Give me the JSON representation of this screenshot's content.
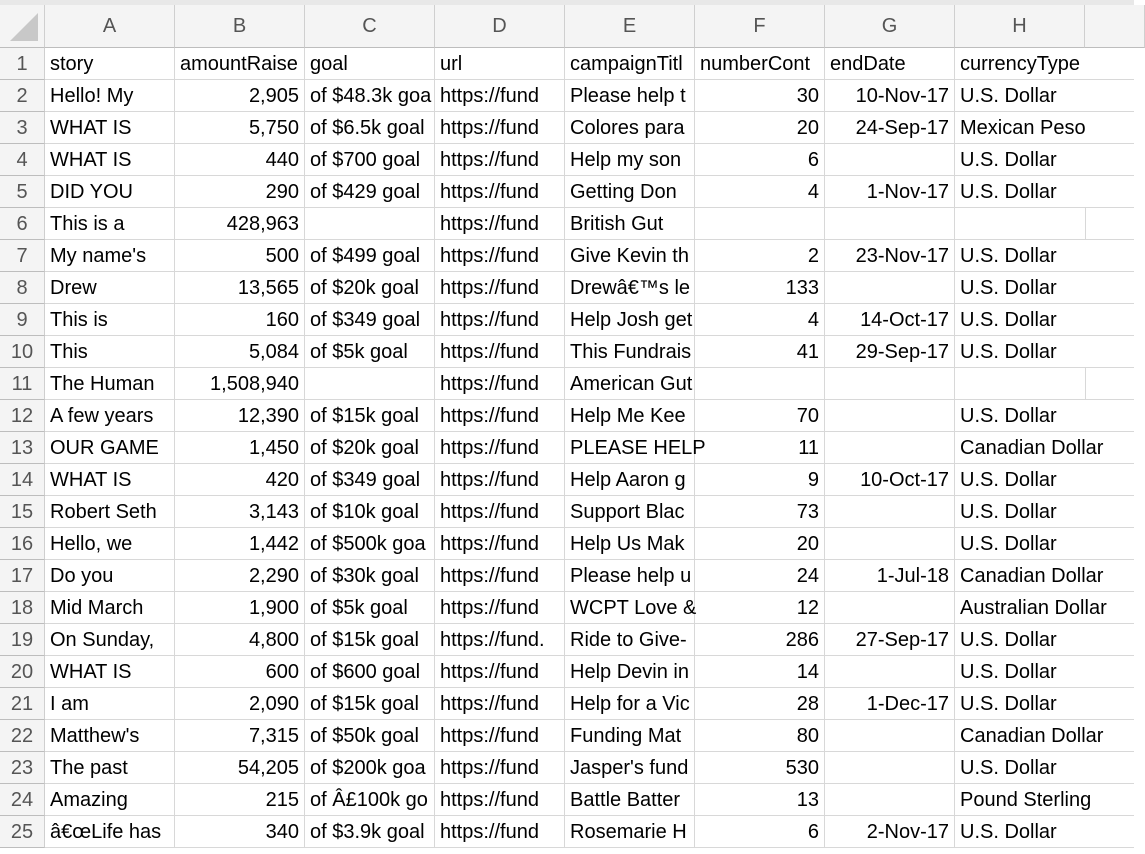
{
  "sheet": {
    "columns": [
      "A",
      "B",
      "C",
      "D",
      "E",
      "F",
      "G",
      "H"
    ],
    "rows": [
      {
        "number": 1,
        "cells": [
          "story",
          "amountRaise",
          "goal",
          "url",
          "campaignTitl",
          "numberCont",
          "endDate",
          "currencyType"
        ]
      },
      {
        "number": 2,
        "cells": [
          "Hello! My",
          "2,905",
          "of $48.3k goa",
          "https://fund",
          "Please help t",
          "30",
          "10-Nov-17",
          "U.S. Dollar"
        ]
      },
      {
        "number": 3,
        "cells": [
          "WHAT IS",
          "5,750",
          "of $6.5k goal",
          "https://fund",
          "Colores para",
          "20",
          "24-Sep-17",
          "Mexican Peso"
        ]
      },
      {
        "number": 4,
        "cells": [
          "WHAT IS",
          "440",
          "of $700 goal",
          "https://fund",
          "Help my son",
          "6",
          null,
          "U.S. Dollar"
        ]
      },
      {
        "number": 5,
        "cells": [
          "DID YOU",
          "290",
          "of $429 goal",
          "https://fund",
          "Getting Don",
          "4",
          "1-Nov-17",
          "U.S. Dollar"
        ]
      },
      {
        "number": 6,
        "cells": [
          "This is a",
          "428,963",
          null,
          "https://fund",
          "British Gut",
          null,
          null,
          null
        ]
      },
      {
        "number": 7,
        "cells": [
          "My name's",
          "500",
          "of $499 goal",
          "https://fund",
          "Give Kevin th",
          "2",
          "23-Nov-17",
          "U.S. Dollar"
        ]
      },
      {
        "number": 8,
        "cells": [
          "Drew",
          "13,565",
          "of $20k goal",
          "https://fund",
          "Drewâ€™s le",
          "133",
          null,
          "U.S. Dollar"
        ]
      },
      {
        "number": 9,
        "cells": [
          "This is",
          "160",
          "of $349 goal",
          "https://fund",
          "Help Josh get",
          "4",
          "14-Oct-17",
          "U.S. Dollar"
        ]
      },
      {
        "number": 10,
        "cells": [
          "This",
          "5,084",
          "of $5k goal",
          "https://fund",
          "This Fundrais",
          "41",
          "29-Sep-17",
          "U.S. Dollar"
        ]
      },
      {
        "number": 11,
        "cells": [
          "The Human",
          "1,508,940",
          null,
          "https://fund",
          "American Gut",
          null,
          null,
          null
        ]
      },
      {
        "number": 12,
        "cells": [
          "A few years",
          "12,390",
          "of $15k goal",
          "https://fund",
          "Help Me Kee",
          "70",
          null,
          "U.S. Dollar"
        ]
      },
      {
        "number": 13,
        "cells": [
          "OUR GAME",
          "1,450",
          "of $20k goal",
          "https://fund",
          "PLEASE HELP",
          "11",
          null,
          "Canadian Dollar"
        ]
      },
      {
        "number": 14,
        "cells": [
          "WHAT IS",
          "420",
          "of $349 goal",
          "https://fund",
          "Help Aaron g",
          "9",
          "10-Oct-17",
          "U.S. Dollar"
        ]
      },
      {
        "number": 15,
        "cells": [
          "Robert Seth",
          "3,143",
          "of $10k goal",
          "https://fund",
          "Support Blac",
          "73",
          null,
          "U.S. Dollar"
        ]
      },
      {
        "number": 16,
        "cells": [
          "Hello, we",
          "1,442",
          "of $500k goa",
          "https://fund",
          "Help Us Mak",
          "20",
          null,
          "U.S. Dollar"
        ]
      },
      {
        "number": 17,
        "cells": [
          "Do you",
          "2,290",
          "of $30k goal",
          "https://fund",
          "Please help u",
          "24",
          "1-Jul-18",
          "Canadian Dollar"
        ]
      },
      {
        "number": 18,
        "cells": [
          "Mid March",
          "1,900",
          "of $5k goal",
          "https://fund",
          "WCPT Love &",
          "12",
          null,
          "Australian Dollar"
        ]
      },
      {
        "number": 19,
        "cells": [
          "On Sunday,",
          "4,800",
          "of $15k goal",
          "https://fund.",
          "Ride to Give-",
          "286",
          "27-Sep-17",
          "U.S. Dollar"
        ]
      },
      {
        "number": 20,
        "cells": [
          "WHAT IS",
          "600",
          "of $600 goal",
          "https://fund",
          "Help Devin in",
          "14",
          null,
          "U.S. Dollar"
        ]
      },
      {
        "number": 21,
        "cells": [
          "I am",
          "2,090",
          "of $15k goal",
          "https://fund",
          "Help for a Vic",
          "28",
          "1-Dec-17",
          "U.S. Dollar"
        ]
      },
      {
        "number": 22,
        "cells": [
          "Matthew's",
          "7,315",
          "of $50k goal",
          "https://fund",
          "Funding Mat",
          "80",
          null,
          "Canadian Dollar"
        ]
      },
      {
        "number": 23,
        "cells": [
          "The past",
          "54,205",
          "of $200k goa",
          "https://fund",
          "Jasper's fund",
          "530",
          null,
          "U.S. Dollar"
        ]
      },
      {
        "number": 24,
        "cells": [
          "Amazing",
          "215",
          "of Â£100k go",
          "https://fund",
          "Battle Batter",
          "13",
          null,
          "Pound Sterling"
        ]
      },
      {
        "number": 25,
        "cells": [
          "â€œLife has",
          "340",
          "of $3.9k goal",
          "https://fund",
          "Rosemarie H",
          "6",
          "2-Nov-17",
          "U.S. Dollar"
        ]
      }
    ]
  }
}
